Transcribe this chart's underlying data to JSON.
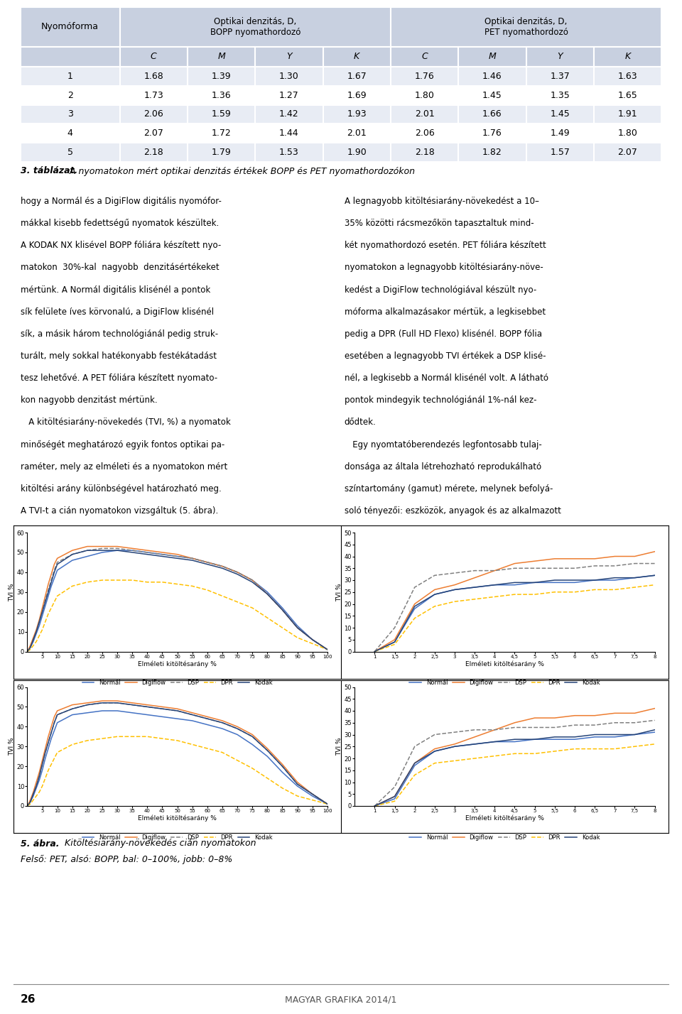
{
  "table": {
    "header_bg": "#c8d0e0",
    "row_bg_odd": "#e8ecf4",
    "row_bg_even": "#ffffff",
    "subheaders": [
      "C",
      "M",
      "Y",
      "K",
      "C",
      "M",
      "Y",
      "K"
    ],
    "rows": [
      [
        "1",
        "1.68",
        "1.39",
        "1.30",
        "1.67",
        "1.76",
        "1.46",
        "1.37",
        "1.63"
      ],
      [
        "2",
        "1.73",
        "1.36",
        "1.27",
        "1.69",
        "1.80",
        "1.45",
        "1.35",
        "1.65"
      ],
      [
        "3",
        "2.06",
        "1.59",
        "1.42",
        "1.93",
        "2.01",
        "1.66",
        "1.45",
        "1.91"
      ],
      [
        "4",
        "2.07",
        "1.72",
        "1.44",
        "2.01",
        "2.06",
        "1.76",
        "1.49",
        "1.80"
      ],
      [
        "5",
        "2.18",
        "1.79",
        "1.53",
        "1.90",
        "2.18",
        "1.82",
        "1.57",
        "2.07"
      ]
    ],
    "caption_bold": "3. táblázat.",
    "caption_text": " A nyomatokon mért optikai denzitás értékek BOPP és PET nyomathordozókon"
  },
  "text_left": [
    "hogy a Normál és a DigiFlow digitális nyomófor-",
    "mákkal kisebb fedettségű nyomatok készültek.",
    "A KODAK NX klisével BOPP fóliára készített nyo-",
    "matokon  30%-kal  nagyobb  denzitásértékeket",
    "mértünk. A Normál digitális klisénél a pontok",
    "sík felülete íves körvonalú, a DigiFlow klisénél",
    "sík, a másik három technológiánál pedig struk-",
    "turált, mely sokkal hatékonyabb festékátadást",
    "tesz lehetővé. A PET fóliára készített nyomato-",
    "kon nagyobb denzitást mértünk.",
    "   A kitöltésiarány-növekedés (TVI, %) a nyomatok",
    "minőségét meghatározó egyik fontos optikai pa-",
    "raméter, mely az elméleti és a nyomatokon mért",
    "kitöltési arány különbségével határozható meg.",
    "A TVI-t a cián nyomatokon vizsgáltuk (5. ábra)."
  ],
  "text_right": [
    "A legnagyobb kitöltésiarány-növekedést a 10–",
    "35% közötti rácsmezőkön tapasztaltuk mind-",
    "két nyomathordozó esetén. PET fóliára készített",
    "nyomatokon a legnagyobb kitöltésiarány-növe-",
    "kedést a DigiFlow technológiával készült nyo-",
    "móforma alkalmazásakor mértük, a legkisebbet",
    "pedig a DPR (Full HD Flexo) klisénél. BOPP fólia",
    "esetében a legnagyobb TVI értékek a DSP klisé-",
    "nél, a legkisebb a Normál klisénél volt. A látható",
    "pontok mindegyik technológiánál 1%-nál kez-",
    "dődtek.",
    "   Egy nyomtatóberendezés legfontosabb tulaj-",
    "donsága az általa létrehozható reprodukálható",
    "színtartomány (gamut) mérete, melynek befolyá-",
    "soló tényezői: eszközök, anyagok és az alkalmazott"
  ],
  "colors": {
    "normal": "#4472c4",
    "digiflow": "#ed7d31",
    "dsp": "#808080",
    "dpr": "#ffc000",
    "kodak": "#264478"
  },
  "chart_caption_bold": "5. ábra.",
  "chart_caption_rest": " Kitöltésiarány-növekedés cián nyomatokon",
  "chart_caption2": "Felső: PET, alsó: BOPP, bal: 0–100%, jobb: 0–8%",
  "page_number": "26",
  "page_journal": "MAGYAR GRAFIKA 2014/1"
}
